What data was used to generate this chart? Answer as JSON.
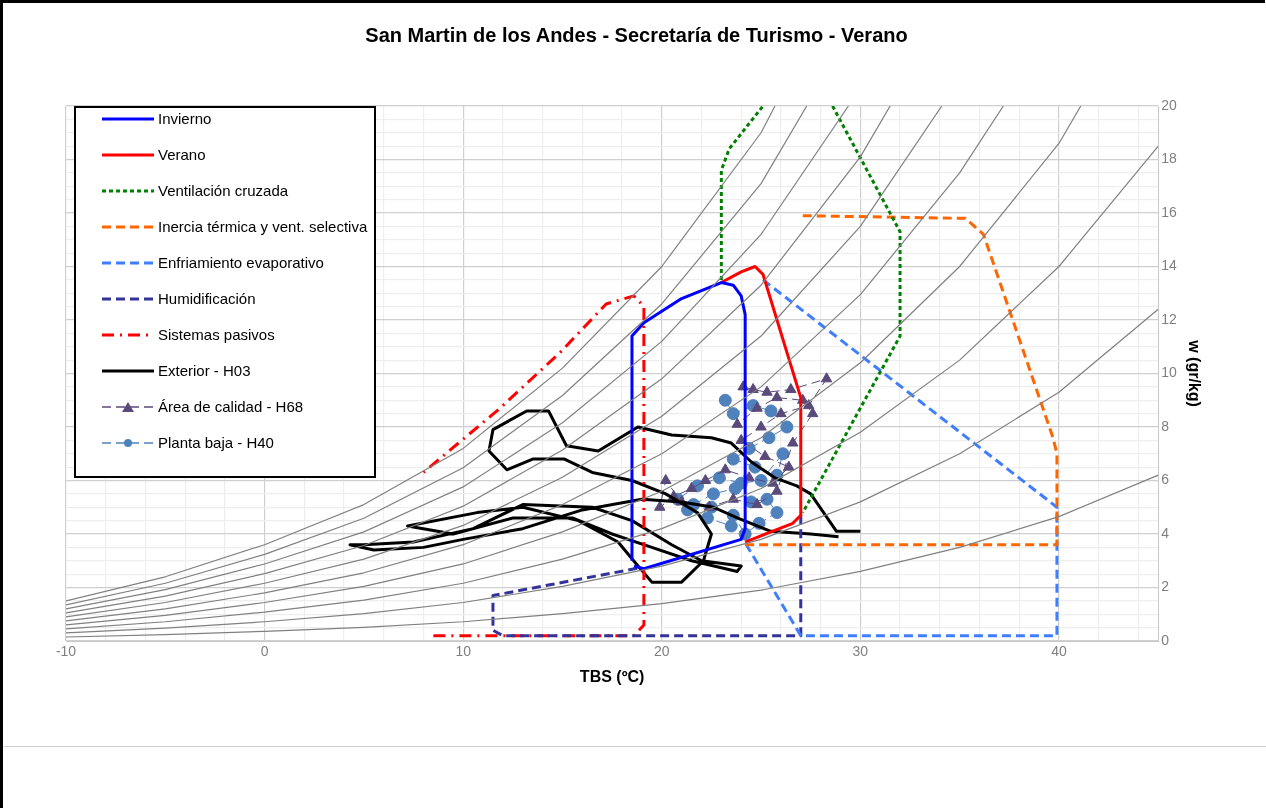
{
  "chart_data": {
    "type": "line",
    "title": "San Martin de los Andes - Secretaría de Turismo - Verano",
    "xlabel": "TBS (ºC)",
    "ylabel": "w (gr/kg)",
    "xlim": [
      -10,
      45
    ],
    "ylim": [
      0,
      20
    ],
    "xticks": [
      -10,
      {
        "value": -8,
        "label": null
      },
      {
        "value": -6,
        "label": null
      },
      {
        "value": -4,
        "label": null
      },
      {
        "value": -2,
        "label": null
      },
      0,
      {
        "value": 2,
        "label": null
      },
      {
        "value": 4,
        "label": null
      },
      {
        "value": 6,
        "label": null
      },
      {
        "value": 8,
        "label": null
      },
      10,
      {
        "value": 12,
        "label": null
      },
      {
        "value": 14,
        "label": null
      },
      {
        "value": 16,
        "label": null
      },
      {
        "value": 18,
        "label": null
      },
      20,
      {
        "value": 22,
        "label": null
      },
      {
        "value": 24,
        "label": null
      },
      {
        "value": 26,
        "label": null
      },
      {
        "value": 28,
        "label": null
      },
      30,
      {
        "value": 32,
        "label": null
      },
      {
        "value": 34,
        "label": null
      },
      {
        "value": 36,
        "label": null
      },
      {
        "value": 38,
        "label": null
      },
      40,
      {
        "value": 42,
        "label": null
      },
      {
        "value": 44,
        "label": null
      }
    ],
    "yticks": [
      0,
      {
        "value": 0.5,
        "label": null
      },
      {
        "value": 1,
        "label": null
      },
      {
        "value": 1.5,
        "label": null
      },
      2,
      {
        "value": 2.5,
        "label": null
      },
      {
        "value": 3,
        "label": null
      },
      {
        "value": 3.5,
        "label": null
      },
      4,
      {
        "value": 4.5,
        "label": null
      },
      {
        "value": 5,
        "label": null
      },
      {
        "value": 5.5,
        "label": null
      },
      6,
      {
        "value": 6.5,
        "label": null
      },
      {
        "value": 7,
        "label": null
      },
      {
        "value": 7.5,
        "label": null
      },
      8,
      {
        "value": 8.5,
        "label": null
      },
      {
        "value": 9,
        "label": null
      },
      {
        "value": 9.5,
        "label": null
      },
      10,
      {
        "value": 10.5,
        "label": null
      },
      {
        "value": 11,
        "label": null
      },
      {
        "value": 11.5,
        "label": null
      },
      12,
      {
        "value": 12.5,
        "label": null
      },
      {
        "value": 13,
        "label": null
      },
      {
        "value": 13.5,
        "label": null
      },
      14,
      {
        "value": 14.5,
        "label": null
      },
      {
        "value": 15,
        "label": null
      },
      {
        "value": 15.5,
        "label": null
      },
      16,
      {
        "value": 16.5,
        "label": null
      },
      {
        "value": 17,
        "label": null
      },
      {
        "value": 17.5,
        "label": null
      },
      18,
      {
        "value": 18.5,
        "label": null
      },
      {
        "value": 19,
        "label": null
      },
      {
        "value": 19.5,
        "label": null
      },
      20
    ],
    "grid": true,
    "legend": "top left",
    "marker": "none",
    "line_style": "solid",
    "series": [
      {
        "color": "#808080",
        "x": [
          -10,
          -5,
          0,
          5,
          10,
          15,
          20,
          25,
          25.7
        ],
        "values": [
          1.5,
          2.4,
          3.6,
          5.1,
          7.2,
          10.2,
          14.0,
          19.0,
          20
        ]
      },
      {
        "color": "#808080",
        "x": [
          -10,
          -5,
          0,
          5,
          10,
          15,
          20,
          25,
          27.3
        ],
        "values": [
          1.35,
          2.16,
          3.24,
          4.59,
          6.48,
          9.18,
          12.6,
          17.1,
          20
        ]
      },
      {
        "color": "#808080",
        "x": [
          -10,
          -5,
          0,
          5,
          10,
          15,
          20,
          25,
          29.4
        ],
        "values": [
          1.2,
          1.92,
          2.88,
          4.08,
          5.76,
          8.16,
          11.2,
          15.2,
          20
        ]
      },
      {
        "color": "#808080",
        "x": [
          -10,
          -5,
          0,
          5,
          10,
          15,
          20,
          25,
          30,
          31.5
        ],
        "values": [
          1.05,
          1.68,
          2.52,
          3.57,
          5.04,
          7.14,
          9.8,
          13.3,
          18.1,
          20
        ]
      },
      {
        "color": "#808080",
        "x": [
          -10,
          -5,
          0,
          5,
          10,
          15,
          20,
          25,
          30,
          34.1
        ],
        "values": [
          0.9,
          1.44,
          2.16,
          3.06,
          4.32,
          6.12,
          8.4,
          11.4,
          15.5,
          20
        ]
      },
      {
        "color": "#808080",
        "x": [
          -10,
          -5,
          0,
          5,
          10,
          15,
          20,
          25,
          30,
          35,
          37.2
        ],
        "values": [
          0.75,
          1.2,
          1.8,
          2.55,
          3.6,
          5.1,
          7.0,
          9.5,
          12.95,
          17.5,
          20
        ]
      },
      {
        "color": "#808080",
        "x": [
          -10,
          -5,
          0,
          5,
          10,
          15,
          20,
          25,
          30,
          35,
          40,
          41.1
        ],
        "values": [
          0.6,
          0.96,
          1.44,
          2.04,
          2.88,
          4.08,
          5.6,
          7.6,
          10.4,
          14.0,
          18.6,
          20
        ]
      },
      {
        "color": "#808080",
        "x": [
          -10,
          -5,
          0,
          5,
          10,
          15,
          20,
          25,
          30,
          35,
          40,
          45
        ],
        "values": [
          0.45,
          0.72,
          1.08,
          1.53,
          2.16,
          3.06,
          4.2,
          5.7,
          7.8,
          10.5,
          14.0,
          18.5
        ]
      },
      {
        "color": "#808080",
        "x": [
          -10,
          -5,
          0,
          5,
          10,
          15,
          20,
          25,
          30,
          35,
          40,
          45
        ],
        "values": [
          0.3,
          0.48,
          0.72,
          1.02,
          1.44,
          2.04,
          2.8,
          3.8,
          5.2,
          7.0,
          9.3,
          12.4
        ]
      },
      {
        "color": "#808080",
        "x": [
          -10,
          -5,
          0,
          5,
          10,
          15,
          20,
          25,
          30,
          35,
          40,
          45
        ],
        "values": [
          0.15,
          0.24,
          0.36,
          0.51,
          0.72,
          1.02,
          1.4,
          1.9,
          2.6,
          3.5,
          4.65,
          6.2
        ]
      },
      {
        "name": "Invierno",
        "color": "#0000ff",
        "x": [
          18.5,
          18.5,
          19.1,
          21,
          23.0,
          23.6,
          24.0,
          24.2,
          24.2,
          24.0,
          19.1,
          18.6
        ],
        "values": [
          3.0,
          11.4,
          11.9,
          12.8,
          13.4,
          13.3,
          12.9,
          12.2,
          4.2,
          3.8,
          2.7,
          2.8
        ]
      },
      {
        "name": "Verano",
        "color": "#ff0000",
        "x": [
          23.0,
          24.0,
          24.7,
          25.1,
          27.0,
          27.0,
          26.6,
          24.2
        ],
        "values": [
          13.4,
          13.8,
          14.0,
          13.7,
          9.1,
          4.7,
          4.4,
          3.7
        ]
      },
      {
        "name": "Ventilación cruzada",
        "color": "#008000",
        "line_style": "dotted",
        "x": [
          23.0,
          23.0,
          23.4,
          25.1,
          26.8,
          28.6,
          32.0,
          32.0,
          27.1
        ],
        "values": [
          13.5,
          17.6,
          18.4,
          20,
          null,
          20,
          15.3,
          11.4,
          4.8
        ]
      },
      {
        "name": "Inercia térmica y vent. selectiva",
        "color": "#ff6600",
        "line_style": "dashed",
        "x": [
          24.2,
          39.9,
          39.9,
          39.7,
          36.2,
          35.3,
          27.0
        ],
        "values": [
          3.6,
          3.6,
          7.0,
          7.6,
          15.2,
          15.8,
          15.9
        ]
      },
      {
        "name": "Enfriamiento evaporativo",
        "color": "#3f7fff",
        "line_style": "dashed",
        "x": [
          25.1,
          39.9,
          39.9,
          27.0,
          24.1
        ],
        "values": [
          13.5,
          5.0,
          0.2,
          0.2,
          3.8
        ]
      },
      {
        "name": "Humidificación",
        "color": "#333399",
        "line_style": "dashed",
        "x": [
          27.0,
          27.0,
          12.0,
          11.5,
          11.5,
          19.0
        ],
        "values": [
          4.7,
          0.2,
          0.2,
          0.4,
          1.7,
          2.75
        ]
      },
      {
        "name": "Sistemas pasivos",
        "color": "#ff0000",
        "line_style": "dashdot",
        "x": [
          8.5,
          18.6,
          19.1,
          19.1,
          18.6,
          17.2,
          14.9,
          11.85,
          8.0
        ],
        "values": [
          0.2,
          0.2,
          0.6,
          12.5,
          12.9,
          12.6,
          10.8,
          8.7,
          6.3
        ]
      },
      {
        "name": "Exterior - H03",
        "color": "#000000",
        "x": [
          30,
          28.8,
          27.5,
          26.8,
          25.7,
          24.5,
          23.5,
          22.5,
          20.5,
          18.8,
          16.8,
          15.2,
          14.3,
          13.2,
          11.5,
          11.3,
          12.2,
          13.5,
          15.1,
          16.5,
          18.5,
          20.2,
          21.8,
          22.5,
          22.1,
          21.0,
          19.5,
          18.7,
          17.8,
          15.8,
          13,
          10.7,
          7.2,
          9.5,
          12.5,
          15.5,
          17.5,
          19.5,
          21.5,
          23.8,
          24,
          22.0,
          20.5,
          18.5,
          16.5,
          13.0,
          10.5,
          7.5,
          5.0,
          4.3,
          5.5,
          8.0,
          10,
          13,
          16.0,
          19.0,
          21.0,
          22.6,
          23.8,
          25.5,
          27.5,
          28.9
        ],
        "values": [
          4.1,
          4.1,
          5.5,
          5.8,
          6.1,
          6.7,
          7.4,
          7.6,
          7.7,
          8.0,
          7.1,
          7.3,
          8.6,
          8.6,
          7.9,
          7.1,
          6.4,
          6.8,
          6.8,
          6.3,
          6.0,
          5.5,
          4.8,
          4.0,
          3.0,
          2.2,
          2.2,
          2.9,
          3.7,
          4.5,
          5.0,
          4.8,
          4.3,
          4.0,
          4.6,
          4.6,
          4.0,
          3.5,
          3.0,
          2.6,
          2.8,
          3.0,
          3.6,
          4.5,
          5.0,
          5.1,
          4.2,
          3.7,
          3.6,
          3.6,
          3.4,
          3.5,
          3.8,
          4.2,
          4.9,
          5.3,
          5.2,
          5.0,
          4.6,
          4.1,
          4.0,
          3.9
        ]
      },
      {
        "name": "Área de calidad - H68",
        "color": "#5a4a7a",
        "line_style": "dashed",
        "marker": "triangle",
        "x": [
          24.1,
          24.6,
          25.3,
          26.5,
          28.3,
          27.4,
          26.0,
          25.0,
          24.0,
          25.2,
          26.4,
          25.6,
          24.4,
          23.2,
          22.2,
          21.5,
          20.6,
          19.9,
          20.2,
          21.0,
          22.4,
          23.6,
          24.8,
          25.8,
          26.6,
          27.6,
          27.1,
          25.8,
          24.8,
          23.8
        ],
        "values": [
          9.5,
          9.4,
          9.3,
          9.4,
          9.8,
          8.8,
          8.5,
          8.0,
          7.5,
          6.9,
          6.5,
          5.9,
          6.1,
          6.4,
          6.0,
          5.7,
          5.4,
          5.0,
          6.0,
          5.2,
          5.0,
          5.3,
          5.1,
          5.6,
          7.4,
          8.5,
          9.0,
          9.1,
          8.7,
          8.1
        ]
      },
      {
        "name": "Planta baja - H40",
        "color": "#4f81bd",
        "line_style": "dashed",
        "marker": "circle",
        "x": [
          23.2,
          23.6,
          24.6,
          25.5,
          26.3,
          25.4,
          24.4,
          23.6,
          24.7,
          25.8,
          26.1,
          25.0,
          24.0,
          22.9,
          21.8,
          20.8,
          21.6,
          22.6,
          23.7,
          24.5,
          25.3,
          25.8,
          24.9,
          24.2,
          23.6,
          22.5,
          21.3,
          22.3,
          23.5
        ],
        "values": [
          9.0,
          8.5,
          8.8,
          8.6,
          8.0,
          7.6,
          7.2,
          6.8,
          6.5,
          6.2,
          7.0,
          6.0,
          5.9,
          6.1,
          5.8,
          5.3,
          5.1,
          5.5,
          5.7,
          5.2,
          5.3,
          4.8,
          4.4,
          4.0,
          4.7,
          5.0,
          4.9,
          4.6,
          4.3
        ]
      }
    ]
  }
}
